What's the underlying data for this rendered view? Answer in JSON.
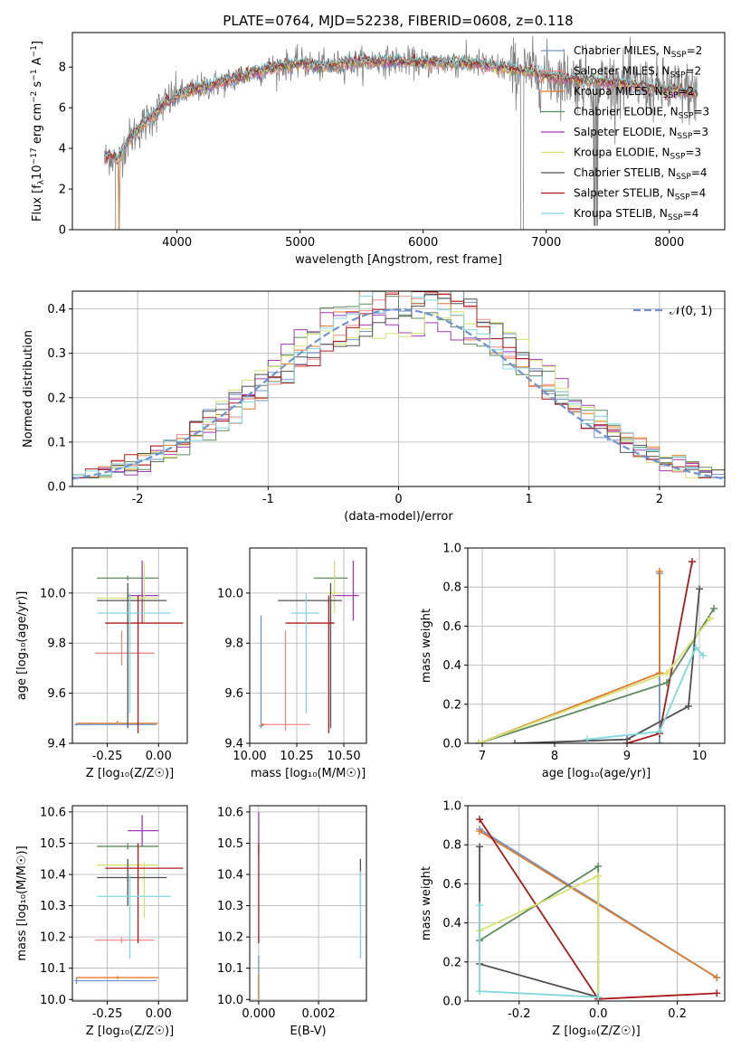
{
  "title": "PLATE=0764, MJD=52238, FIBERID=0608, z=0.118",
  "colors": {
    "Chabrier MILES": "#6f93c9",
    "Salpeter MILES": "#ee8a8a",
    "Kroupa MILES": "#e07b2c",
    "Chabrier ELODIE": "#5b8a5b",
    "Salpeter ELODIE": "#a23ab5",
    "Kroupa ELODIE": "#d8e070",
    "Chabrier STELIB": "#505050",
    "Salpeter STELIB": "#aa1a1a",
    "Kroupa STELIB": "#80d8dc",
    "normal_curve": "#6f93d2",
    "spectrum": "#808080"
  },
  "chart_data": [
    {
      "id": "spectrum",
      "type": "line",
      "xlabel": "wavelength [Angstrom, rest frame]",
      "ylabel": "Flux [f$_\\lambda$10$^{-17}$ erg cm$^{-2}$ s$^{-1}$ A$^{-1}$]",
      "ylabel_parts": [
        "Flux [f",
        "λ",
        "10",
        "−17",
        " erg cm",
        "−2",
        " s",
        "−1",
        " A",
        "−1",
        "]"
      ],
      "xlim": [
        3150,
        8450
      ],
      "ylim": [
        0,
        9.7
      ],
      "xticks": [
        4000,
        5000,
        6000,
        7000,
        8000
      ],
      "yticks": [
        0,
        2,
        4,
        6,
        8
      ],
      "observed_continuum": [
        [
          3410,
          3.4
        ],
        [
          3450,
          3.7
        ],
        [
          3520,
          3.4
        ],
        [
          3600,
          4.4
        ],
        [
          3700,
          5.0
        ],
        [
          3800,
          5.6
        ],
        [
          3900,
          6.2
        ],
        [
          4000,
          6.6
        ],
        [
          4200,
          7.0
        ],
        [
          4400,
          7.3
        ],
        [
          4600,
          7.7
        ],
        [
          4800,
          8.0
        ],
        [
          5000,
          8.2
        ],
        [
          5200,
          8.0
        ],
        [
          5400,
          8.2
        ],
        [
          5600,
          8.3
        ],
        [
          5800,
          8.3
        ],
        [
          6000,
          8.2
        ],
        [
          6200,
          8.2
        ],
        [
          6400,
          8.2
        ],
        [
          6600,
          8.0
        ],
        [
          6800,
          7.8
        ],
        [
          7000,
          7.6
        ],
        [
          7200,
          7.4
        ],
        [
          7400,
          7.3
        ],
        [
          7600,
          7.2
        ],
        [
          7800,
          7.0
        ],
        [
          8000,
          6.9
        ],
        [
          8200,
          6.7
        ]
      ],
      "legend_labels": [
        "Chabrier MILES, N",
        "Salpeter MILES, N",
        "Kroupa MILES, N",
        "Chabrier ELODIE, N",
        "Salpeter ELODIE, N",
        "Kroupa ELODIE, N",
        "Chabrier STELIB, N",
        "Salpeter STELIB, N",
        "Kroupa STELIB, N"
      ],
      "legend_sub": "SSP",
      "legend_values": [
        "=2",
        "=2",
        "=2",
        "=3",
        "=3",
        "=3",
        "=4",
        "=4",
        "=4"
      ],
      "legend_placement": "right",
      "grid": false
    },
    {
      "id": "residuals",
      "type": "histogram",
      "xlabel": "(data-model)/error",
      "ylabel": "Normed distribution",
      "xlim": [
        -2.5,
        2.5
      ],
      "ylim": [
        0,
        0.44
      ],
      "xticks": [
        -2,
        -1,
        0,
        1,
        2
      ],
      "yticks": [
        0.0,
        0.1,
        0.2,
        0.3,
        0.4
      ],
      "curve_label": "𝒩(0, 1)",
      "legend_placement": "top-right",
      "grid": true
    },
    {
      "id": "age-vs-Z",
      "type": "errorbar",
      "xlabel": "Z [log₁₀(Z/Z☉)]",
      "ylabel": "age  [log₁₀(age/yr)]",
      "xlim": [
        -0.42,
        0.14
      ],
      "ylim": [
        9.4,
        10.18
      ],
      "xticks": [
        -0.25,
        0.0
      ],
      "yticks": [
        9.4,
        9.6,
        9.8,
        10.0
      ],
      "grid": true
    },
    {
      "id": "age-vs-mass",
      "type": "errorbar",
      "xlabel": "mass [log₁₀(M/M☉)]",
      "ylabel": "",
      "xlim": [
        10.0,
        10.62
      ],
      "ylim": [
        9.4,
        10.18
      ],
      "xticks": [
        10.0,
        10.25,
        10.5
      ],
      "yticks": [
        9.4,
        9.6,
        9.8,
        10.0
      ],
      "grid": true
    },
    {
      "id": "weight-vs-age",
      "type": "line",
      "xlabel": "age  [log₁₀(age/yr)]",
      "ylabel": "mass weight",
      "xlim": [
        6.8,
        10.35
      ],
      "ylim": [
        0,
        1.0
      ],
      "xticks": [
        7,
        8,
        9,
        10
      ],
      "yticks": [
        0.0,
        0.2,
        0.4,
        0.6,
        0.8,
        1.0
      ],
      "grid": true
    },
    {
      "id": "mass-vs-Z",
      "type": "errorbar",
      "xlabel": "Z [log₁₀(Z/Z☉)]",
      "ylabel": "mass [log₁₀(M/M☉)]",
      "xlim": [
        -0.42,
        0.14
      ],
      "ylim": [
        9.995,
        10.62
      ],
      "xticks": [
        -0.25,
        0.0
      ],
      "yticks": [
        10.0,
        10.1,
        10.2,
        10.3,
        10.4,
        10.5,
        10.6
      ],
      "grid": true
    },
    {
      "id": "mass-vs-ebv",
      "type": "errorbar",
      "xlabel": "E(B-V)",
      "ylabel": "",
      "xlim": [
        -0.0003,
        0.0036
      ],
      "ylim": [
        9.995,
        10.62
      ],
      "xticks": [
        0.0,
        0.002
      ],
      "yticks": [
        10.0,
        10.1,
        10.2,
        10.3,
        10.4,
        10.5,
        10.6
      ],
      "grid": true
    },
    {
      "id": "weight-vs-Z",
      "type": "line",
      "xlabel": "Z [log₁₀(Z/Z☉)]",
      "ylabel": "mass weight",
      "xlim": [
        -0.33,
        0.32
      ],
      "ylim": [
        0,
        1.0
      ],
      "xticks": [
        -0.2,
        0.0,
        0.2
      ],
      "yticks": [
        0.0,
        0.2,
        0.4,
        0.6,
        0.8,
        1.0
      ],
      "grid": true
    }
  ],
  "fits": [
    {
      "name": "Chabrier MILES",
      "Z": [
        -0.25,
        -0.16,
        0.0
      ],
      "Zerr": [
        0.01,
        0.06,
        0.12
      ],
      "age": [
        9.48,
        9.92,
        10.0
      ],
      "ageErr": [
        0.02,
        0.06,
        0.04
      ],
      "mass": [
        10.07,
        10.2,
        10.33
      ],
      "massErr": [
        0.01,
        0.04,
        0.04
      ],
      "ebv": 0.0,
      "ebvErr": 3e-05,
      "w_age": [
        9.48,
        9.48
      ],
      "w_agehi": [
        9.48,
        9.48
      ],
      "w_ageTrace": [
        [
          9.48,
          0.0
        ]
      ],
      "w_Zt": [
        [
          0.0,
          0.0
        ]
      ]
    },
    {
      "name": "Salpeter MILES",
      "Z": [
        -0.25,
        -0.16,
        0.0
      ],
      "Zerr": [
        0.01,
        0.06,
        0.12
      ],
      "age": [
        9.48,
        9.95,
        10.0
      ],
      "ageErr": [
        0.03,
        0.06,
        0.04
      ],
      "mass": [
        10.18,
        10.19,
        10.2
      ],
      "massErr": [
        0.01,
        0.04,
        0.04
      ],
      "ebv": 0.0,
      "ebvErr": 3e-05
    }
  ],
  "scatter_model": [
    {
      "name": "Chabrier MILES",
      "Z": -0.4,
      "Zlo": -0.41,
      "Zhi": -0.01,
      "age": 9.475,
      "ageLo": 9.47,
      "ageHi": 9.48,
      "mass": 10.06,
      "massLo": 10.05,
      "massHi": 10.07
    },
    {
      "name": "Salpeter MILES",
      "Z": -0.18,
      "Zlo": -0.31,
      "Zhi": -0.02,
      "age": 9.76,
      "ageLo": 9.71,
      "ageHi": 9.85,
      "mass": 10.19,
      "massLo": 10.18,
      "massHi": 10.2
    },
    {
      "name": "Kroupa MILES",
      "Z": -0.2,
      "Zlo": -0.4,
      "Zhi": -0.0,
      "age": 9.48,
      "ageLo": 9.475,
      "ageHi": 9.49,
      "mass": 10.07,
      "massLo": 10.065,
      "massHi": 10.075
    },
    {
      "name": "Chabrier ELODIE",
      "Z": -0.15,
      "Zlo": -0.3,
      "Zhi": -0.0,
      "age": 10.06,
      "ageLo": 10.05,
      "ageHi": 10.07,
      "mass": 10.49,
      "massLo": 10.48,
      "massHi": 10.5
    },
    {
      "name": "Salpeter ELODIE",
      "Z": -0.08,
      "Zlo": -0.15,
      "Zhi": -0.0,
      "age": 9.99,
      "ageLo": 9.88,
      "ageHi": 10.13,
      "mass": 10.54,
      "massLo": 10.49,
      "massHi": 10.59
    },
    {
      "name": "Kroupa ELODIE",
      "Z": -0.07,
      "Zlo": -0.3,
      "Zhi": -0.0,
      "age": 9.98,
      "ageLo": 9.88,
      "ageHi": 10.12,
      "mass": 10.43,
      "massLo": 10.26,
      "massHi": 10.44
    },
    {
      "name": "Chabrier STELIB",
      "Z": -0.15,
      "Zlo": -0.3,
      "Zhi": 0.04,
      "age": 9.97,
      "ageLo": 9.46,
      "ageHi": 10.04,
      "mass": 10.39,
      "massLo": 10.3,
      "massHi": 10.45
    },
    {
      "name": "Salpeter STELIB",
      "Z": -0.1,
      "Zlo": -0.26,
      "Zhi": 0.12,
      "age": 9.88,
      "ageLo": 9.44,
      "ageHi": 9.99,
      "mass": 10.42,
      "massLo": 10.18,
      "massHi": 10.5
    },
    {
      "name": "Kroupa STELIB",
      "Z": -0.14,
      "Zlo": -0.3,
      "Zhi": 0.06,
      "age": 9.92,
      "ageLo": 9.52,
      "ageHi": 10.0,
      "mass": 10.33,
      "massLo": 10.13,
      "massHi": 10.4
    }
  ],
  "mass_vs_mass": [
    {
      "name": "Chabrier MILES",
      "mass": 10.06,
      "massLo": 10.05,
      "massHi": 10.07,
      "age": 9.47,
      "ageLo": 9.46,
      "ageHi": 9.91
    },
    {
      "name": "Salpeter MILES",
      "mass": 10.19,
      "massLo": 10.06,
      "massHi": 10.32,
      "age": 9.475,
      "ageLo": 9.45,
      "ageHi": 9.85
    },
    {
      "name": "Kroupa MILES",
      "mass": 10.07,
      "massLo": 10.06,
      "massHi": 10.08,
      "age": 9.475,
      "ageLo": 9.47,
      "ageHi": 9.48
    },
    {
      "name": "Chabrier ELODIE",
      "mass": 10.45,
      "massLo": 10.34,
      "massHi": 10.52,
      "age": 10.06,
      "ageLo": 10.05,
      "ageHi": 10.07
    },
    {
      "name": "Salpeter ELODIE",
      "mass": 10.55,
      "massLo": 10.44,
      "massHi": 10.58,
      "age": 9.99,
      "ageLo": 9.89,
      "ageHi": 10.13
    },
    {
      "name": "Kroupa ELODIE",
      "mass": 10.45,
      "massLo": 10.4,
      "massHi": 10.47,
      "age": 10.0,
      "ageLo": 9.92,
      "ageHi": 10.13
    },
    {
      "name": "Chabrier STELIB",
      "mass": 10.43,
      "massLo": 10.15,
      "massHi": 10.49,
      "age": 9.97,
      "ageLo": 9.46,
      "ageHi": 10.04
    },
    {
      "name": "Salpeter STELIB",
      "mass": 10.42,
      "massLo": 10.19,
      "massHi": 10.45,
      "age": 9.88,
      "ageLo": 9.44,
      "ageHi": 9.99
    },
    {
      "name": "Kroupa STELIB",
      "mass": 10.3,
      "massLo": 10.22,
      "massHi": 10.37,
      "age": 9.92,
      "ageLo": 9.52,
      "ageHi": 10.0
    }
  ],
  "ebv_points": [
    {
      "name": "Chabrier MILES",
      "ebv": 0.0,
      "mass": 10.06,
      "massLo": 10.0,
      "massHi": 10.14
    },
    {
      "name": "Salpeter MILES",
      "ebv": 0.0,
      "mass": 10.19,
      "massLo": 10.18,
      "massHi": 10.2
    },
    {
      "name": "Kroupa MILES",
      "ebv": 0.0,
      "mass": 10.07,
      "massLo": 10.0,
      "massHi": 10.08
    },
    {
      "name": "Salpeter ELODIE",
      "ebv": 0.0,
      "mass": 10.52,
      "massLo": 10.46,
      "massHi": 10.6
    },
    {
      "name": "Salpeter STELIB",
      "ebv": 0.0,
      "mass": 10.42,
      "massLo": 10.18,
      "massHi": 10.5
    },
    {
      "name": "Chabrier STELIB",
      "ebv": 0.0034,
      "mass": 10.39,
      "massLo": 10.3,
      "massHi": 10.45
    },
    {
      "name": "Kroupa STELIB",
      "ebv": 0.0034,
      "mass": 10.33,
      "massLo": 10.13,
      "massHi": 10.41
    }
  ],
  "weight_age": [
    {
      "name": "Chabrier MILES",
      "pts": [
        [
          9.45,
          0.0
        ],
        [
          9.45,
          0.87
        ]
      ]
    },
    {
      "name": "Kroupa MILES",
      "pts": [
        [
          6.95,
          0.0
        ],
        [
          9.45,
          0.36
        ],
        [
          9.45,
          0.88
        ]
      ]
    },
    {
      "name": "Salpeter STELIB",
      "pts": [
        [
          9.0,
          0.0
        ],
        [
          9.45,
          0.05
        ],
        [
          9.9,
          0.93
        ]
      ]
    },
    {
      "name": "Chabrier ELODIE",
      "pts": [
        [
          6.95,
          0.0
        ],
        [
          9.55,
          0.31
        ],
        [
          10.2,
          0.69
        ]
      ]
    },
    {
      "name": "Kroupa ELODIE",
      "pts": [
        [
          6.95,
          0.0
        ],
        [
          9.55,
          0.36
        ],
        [
          10.15,
          0.64
        ]
      ]
    },
    {
      "name": "Chabrier STELIB",
      "pts": [
        [
          7.45,
          0.0
        ],
        [
          9.0,
          0.02
        ],
        [
          9.85,
          0.19
        ],
        [
          10.0,
          0.79
        ]
      ]
    },
    {
      "name": "Kroupa STELIB",
      "pts": [
        [
          8.45,
          0.02
        ],
        [
          9.45,
          0.06
        ],
        [
          9.95,
          0.49
        ],
        [
          10.05,
          0.45
        ]
      ]
    }
  ],
  "weight_Z": [
    {
      "name": "Chabrier MILES",
      "pts": [
        [
          -0.3,
          0.88
        ],
        [
          0.3,
          0.12
        ]
      ]
    },
    {
      "name": "Kroupa MILES",
      "pts": [
        [
          -0.3,
          0.87
        ],
        [
          0.3,
          0.12
        ]
      ]
    },
    {
      "name": "Salpeter STELIB",
      "pts": [
        [
          -0.3,
          0.93
        ],
        [
          0.0,
          0.01
        ],
        [
          0.3,
          0.04
        ]
      ]
    },
    {
      "name": "Chabrier ELODIE",
      "pts": [
        [
          -0.3,
          0.31
        ],
        [
          0.0,
          0.69
        ],
        [
          0.0,
          0.0
        ]
      ]
    },
    {
      "name": "Kroupa ELODIE",
      "pts": [
        [
          -0.3,
          0.36
        ],
        [
          0.0,
          0.64
        ],
        [
          0.0,
          0.0
        ]
      ]
    },
    {
      "name": "Chabrier STELIB",
      "pts": [
        [
          -0.3,
          0.79
        ],
        [
          -0.3,
          0.19
        ],
        [
          0.0,
          0.02
        ]
      ]
    },
    {
      "name": "Kroupa STELIB",
      "pts": [
        [
          -0.3,
          0.49
        ],
        [
          -0.3,
          0.05
        ],
        [
          0.0,
          0.02
        ]
      ]
    }
  ]
}
